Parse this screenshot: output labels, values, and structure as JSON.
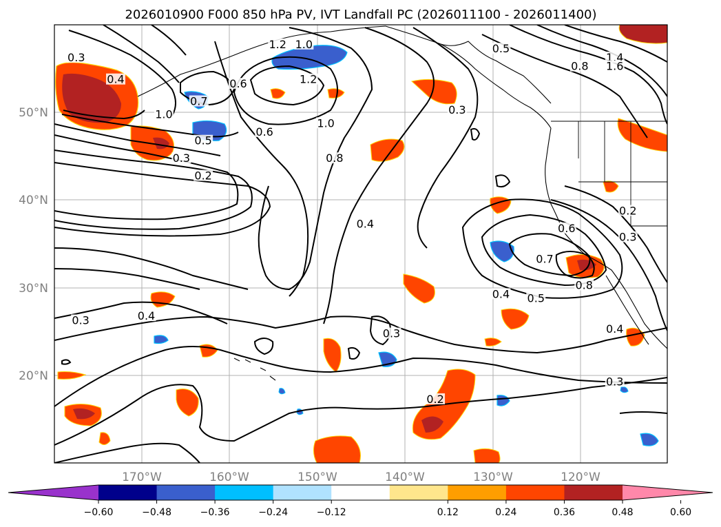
{
  "title": "2026010900 F000 850 hPa PV, IVT Landfall PC (2026011100 - 2026011400)",
  "chart_data": {
    "type": "heatmap",
    "title": "2026010900 F000 850 hPa PV, IVT Landfall PC (2026011100 - 2026011400)",
    "lon_ticks": [
      "170°W",
      "160°W",
      "150°W",
      "140°W",
      "130°W",
      "120°W"
    ],
    "lat_ticks": [
      "50°N",
      "40°N",
      "30°N",
      "20°N"
    ],
    "colorbar": {
      "ticks": [
        "−0.60",
        "−0.48",
        "−0.36",
        "−0.24",
        "−0.12",
        "0.12",
        "0.24",
        "0.36",
        "0.48",
        "0.60"
      ],
      "colors": [
        "#9932cc",
        "#00008b",
        "#3a5fcd",
        "#00bfff",
        "#b0e2ff",
        "#ffffff",
        "#ffe68c",
        "#ff9e00",
        "#ff4500",
        "#b22222",
        "#ff88aa"
      ]
    },
    "contour_labels": [
      {
        "text": "0.3",
        "lon": -177.5,
        "lat": 56.0
      },
      {
        "text": "0.4",
        "lon": -173.0,
        "lat": 53.5
      },
      {
        "text": "1.0",
        "lon": -167.5,
        "lat": 49.5
      },
      {
        "text": "0.7",
        "lon": -163.5,
        "lat": 51.0
      },
      {
        "text": "0.6",
        "lon": -159.0,
        "lat": 53.0
      },
      {
        "text": "1.2",
        "lon": -154.5,
        "lat": 57.5
      },
      {
        "text": "1.0",
        "lon": -151.5,
        "lat": 57.5
      },
      {
        "text": "1.2",
        "lon": -151.0,
        "lat": 53.5
      },
      {
        "text": "1.0",
        "lon": -149.0,
        "lat": 48.5
      },
      {
        "text": "0.6",
        "lon": -156.0,
        "lat": 47.5
      },
      {
        "text": "0.5",
        "lon": -163.0,
        "lat": 46.5
      },
      {
        "text": "0.3",
        "lon": -165.5,
        "lat": 44.5
      },
      {
        "text": "0.2",
        "lon": -163.0,
        "lat": 42.5
      },
      {
        "text": "0.8",
        "lon": -148.0,
        "lat": 44.5
      },
      {
        "text": "0.4",
        "lon": -144.5,
        "lat": 37.0
      },
      {
        "text": "0.3",
        "lon": -134.0,
        "lat": 50.0
      },
      {
        "text": "0.5",
        "lon": -129.0,
        "lat": 57.0
      },
      {
        "text": "0.8",
        "lon": -120.0,
        "lat": 55.0
      },
      {
        "text": "1.4",
        "lon": -116.0,
        "lat": 56.0
      },
      {
        "text": "1.6",
        "lon": -116.0,
        "lat": 55.0
      },
      {
        "text": "0.2",
        "lon": -114.5,
        "lat": 38.5
      },
      {
        "text": "0.3",
        "lon": -114.5,
        "lat": 35.5
      },
      {
        "text": "0.6",
        "lon": -121.5,
        "lat": 36.5
      },
      {
        "text": "0.7",
        "lon": -124.0,
        "lat": 33.0
      },
      {
        "text": "0.8",
        "lon": -119.5,
        "lat": 30.0
      },
      {
        "text": "0.5",
        "lon": -125.0,
        "lat": 28.5
      },
      {
        "text": "0.4",
        "lon": -129.0,
        "lat": 29.0
      },
      {
        "text": "0.4",
        "lon": -116.0,
        "lat": 25.0
      },
      {
        "text": "0.3",
        "lon": -116.0,
        "lat": 19.0
      },
      {
        "text": "0.2",
        "lon": -136.5,
        "lat": 17.0
      },
      {
        "text": "0.3",
        "lon": -141.5,
        "lat": 24.5
      },
      {
        "text": "0.4",
        "lon": -169.5,
        "lat": 26.5
      },
      {
        "text": "0.3",
        "lon": -177.0,
        "lat": 26.0
      }
    ]
  }
}
